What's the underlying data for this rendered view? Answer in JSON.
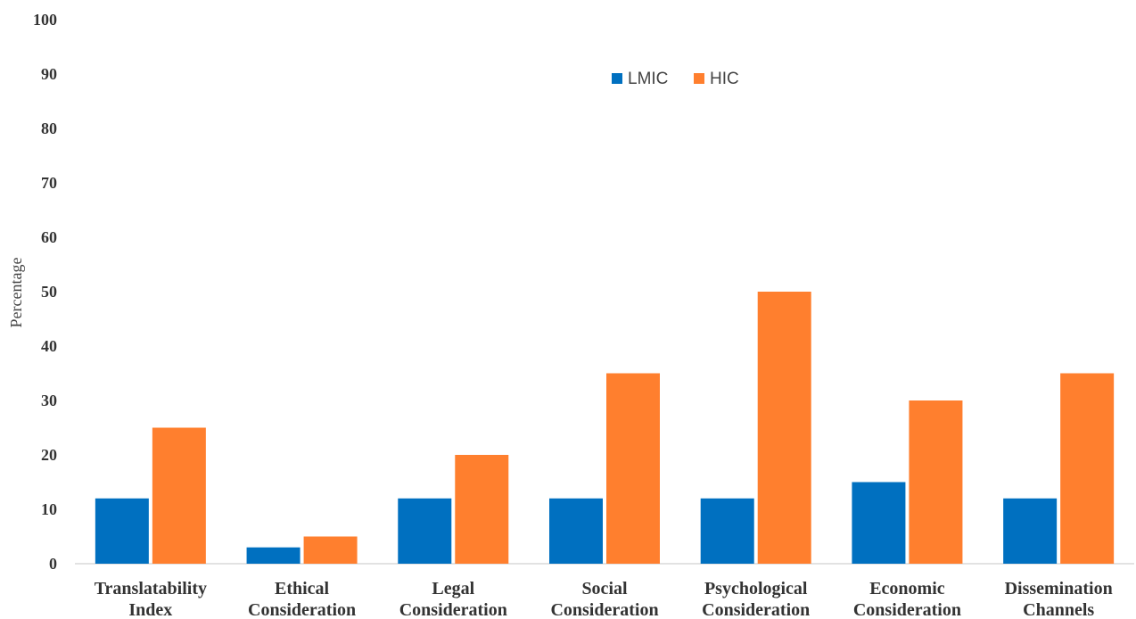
{
  "chart_data": {
    "type": "bar",
    "categories": [
      [
        "Translatability",
        "Index"
      ],
      [
        "Ethical",
        "Consideration"
      ],
      [
        "Legal",
        "Consideration"
      ],
      [
        "Social",
        "Consideration"
      ],
      [
        "Psychological",
        "Consideration"
      ],
      [
        "Economic",
        "Consideration"
      ],
      [
        "Dissemination",
        "Channels"
      ]
    ],
    "series": [
      {
        "name": "LMIC",
        "color": "#0070C0",
        "values": [
          12,
          3,
          12,
          12,
          12,
          15,
          12
        ]
      },
      {
        "name": "HIC",
        "color": "#FF7F2E",
        "values": [
          25,
          5,
          20,
          35,
          50,
          30,
          35
        ]
      }
    ],
    "ylabel": "Percentage",
    "ylim": [
      0,
      100
    ],
    "yticks": [
      0,
      10,
      20,
      30,
      40,
      50,
      60,
      70,
      80,
      90,
      100
    ],
    "grid": false,
    "legend_position": "top-center"
  }
}
